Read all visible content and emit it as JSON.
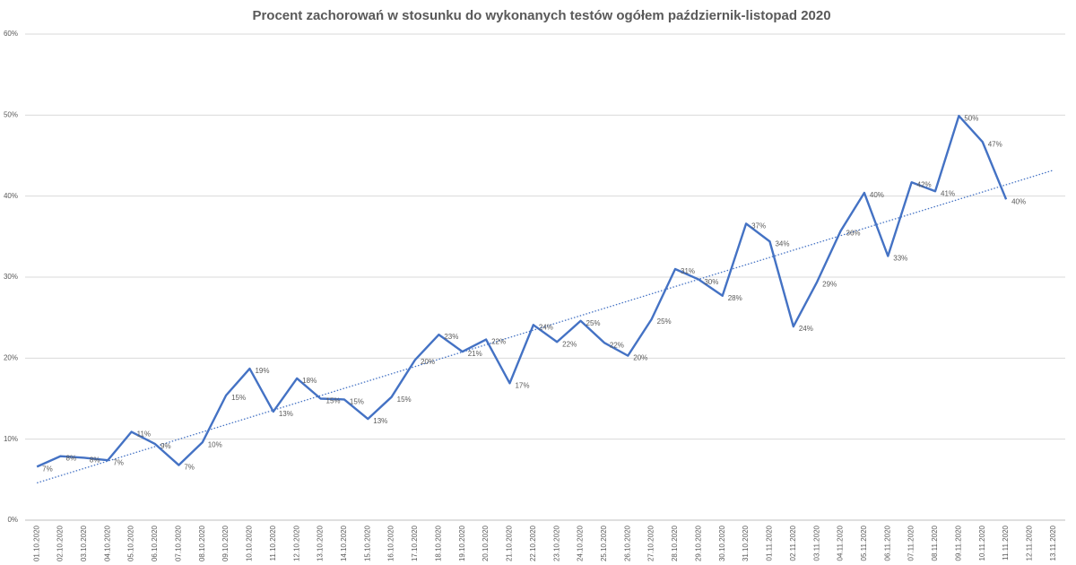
{
  "chart_data": {
    "type": "line",
    "title": "Procent zachorowań w stosunku do wykonanych testów ogółem październik-listopad 2020",
    "categories": [
      "01.10.2020",
      "02.10.2020",
      "03.10.2020",
      "04.10.2020",
      "05.10.2020",
      "06.10.2020",
      "07.10.2020",
      "08.10.2020",
      "09.10.2020",
      "10.10.2020",
      "11.10.2020",
      "12.10.2020",
      "13.10.2020",
      "14.10.2020",
      "15.10.2020",
      "16.10.2020",
      "17.10.2020",
      "18.10.2020",
      "19.10.2020",
      "20.10.2020",
      "21.10.2020",
      "22.10.2020",
      "23.10.2020",
      "24.10.2020",
      "25.10.2020",
      "26.10.2020",
      "27.10.2020",
      "28.10.2020",
      "29.10.2020",
      "30.10.2020",
      "31.10.2020",
      "01.11.2020",
      "02.11.2020",
      "03.11.2020",
      "04.11.2020",
      "05.11.2020",
      "06.11.2020",
      "07.11.2020",
      "08.11.2020",
      "09.11.2020",
      "10.11.2020",
      "11.11.2020",
      "12.11.2020",
      "13.11.2020"
    ],
    "series": [
      {
        "color": "#4472c4",
        "values": [
          6.6,
          7.9,
          7.7,
          7.4,
          10.9,
          9.4,
          6.8,
          9.6,
          15.4,
          18.7,
          13.4,
          17.5,
          15.0,
          14.9,
          12.5,
          15.2,
          19.8,
          22.9,
          20.8,
          22.3,
          16.9,
          24.1,
          22.0,
          24.6,
          21.9,
          20.3,
          24.8,
          31.0,
          29.7,
          27.7,
          36.6,
          34.4,
          23.9,
          29.4,
          35.7,
          40.4,
          32.6,
          41.7,
          40.6,
          49.9,
          46.7,
          39.6,
          null,
          null
        ],
        "value_labels": [
          "7%",
          "8%",
          "8%",
          "7%",
          "11%",
          "9%",
          "7%",
          "10%",
          "15%",
          "19%",
          "13%",
          "18%",
          "15%",
          "15%",
          "13%",
          "15%",
          "20%",
          "23%",
          "21%",
          "22%",
          "17%",
          "24%",
          "22%",
          "25%",
          "22%",
          "20%",
          "25%",
          "31%",
          "30%",
          "28%",
          "37%",
          "34%",
          "24%",
          "29%",
          "36%",
          "40%",
          "33%",
          "42%",
          "41%",
          "50%",
          "47%",
          "40%",
          null,
          null
        ]
      }
    ],
    "trendline": {
      "x": [
        0,
        43
      ],
      "values": [
        4.6,
        43.2
      ],
      "color": "#4472c4"
    },
    "ylim": [
      0,
      60
    ],
    "yticks": [
      {
        "value": 0,
        "label": "0%"
      },
      {
        "value": 10,
        "label": "10%"
      },
      {
        "value": 20,
        "label": "20%"
      },
      {
        "value": 30,
        "label": "30%"
      },
      {
        "value": 40,
        "label": "40%"
      },
      {
        "value": 50,
        "label": "50%"
      },
      {
        "value": 60,
        "label": "60%"
      }
    ],
    "grid": true
  }
}
